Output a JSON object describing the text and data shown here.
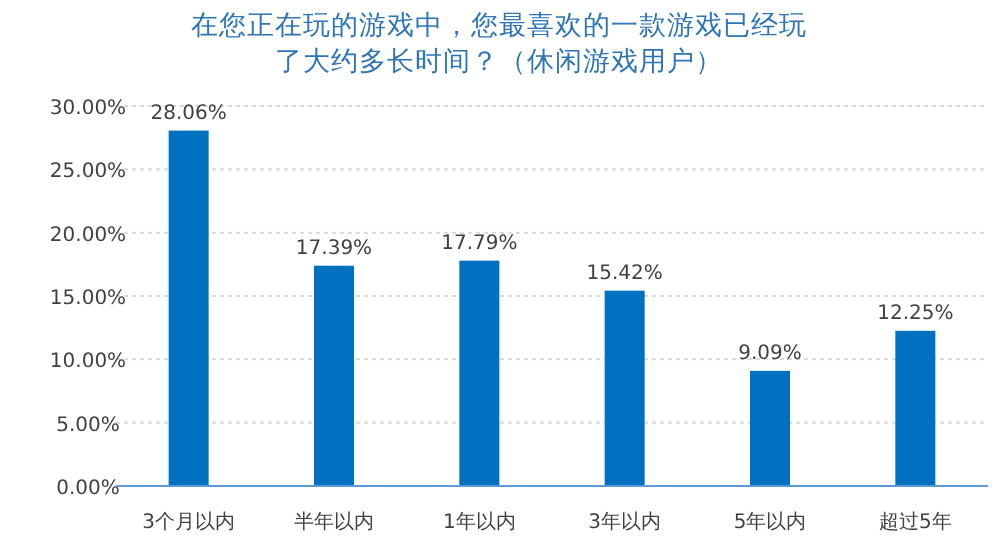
{
  "chart_data": {
    "type": "bar",
    "title": "在您正在玩的游戏中，您最喜欢的一款游戏已经玩了大约多长时间？（休闲游戏用户）",
    "categories": [
      "3个月以内",
      "半年以内",
      "1年以内",
      "3年以内",
      "5年以内",
      "超过5年"
    ],
    "values": [
      28.06,
      17.39,
      17.79,
      15.42,
      9.09,
      12.25
    ],
    "value_labels": [
      "28.06%",
      "17.39%",
      "17.79%",
      "15.42%",
      "9.09%",
      "12.25%"
    ],
    "color": "#0070c0",
    "ylim": [
      0,
      30
    ],
    "yticks": [
      {
        "value": 0,
        "label": "0.00%"
      },
      {
        "value": 5,
        "label": "5.00%"
      },
      {
        "value": 10,
        "label": "10.00%"
      },
      {
        "value": 15,
        "label": "15.00%"
      },
      {
        "value": 20,
        "label": "20.00%"
      },
      {
        "value": 25,
        "label": "25.00%"
      },
      {
        "value": 30,
        "label": "30.00%"
      }
    ],
    "grid": "y"
  }
}
